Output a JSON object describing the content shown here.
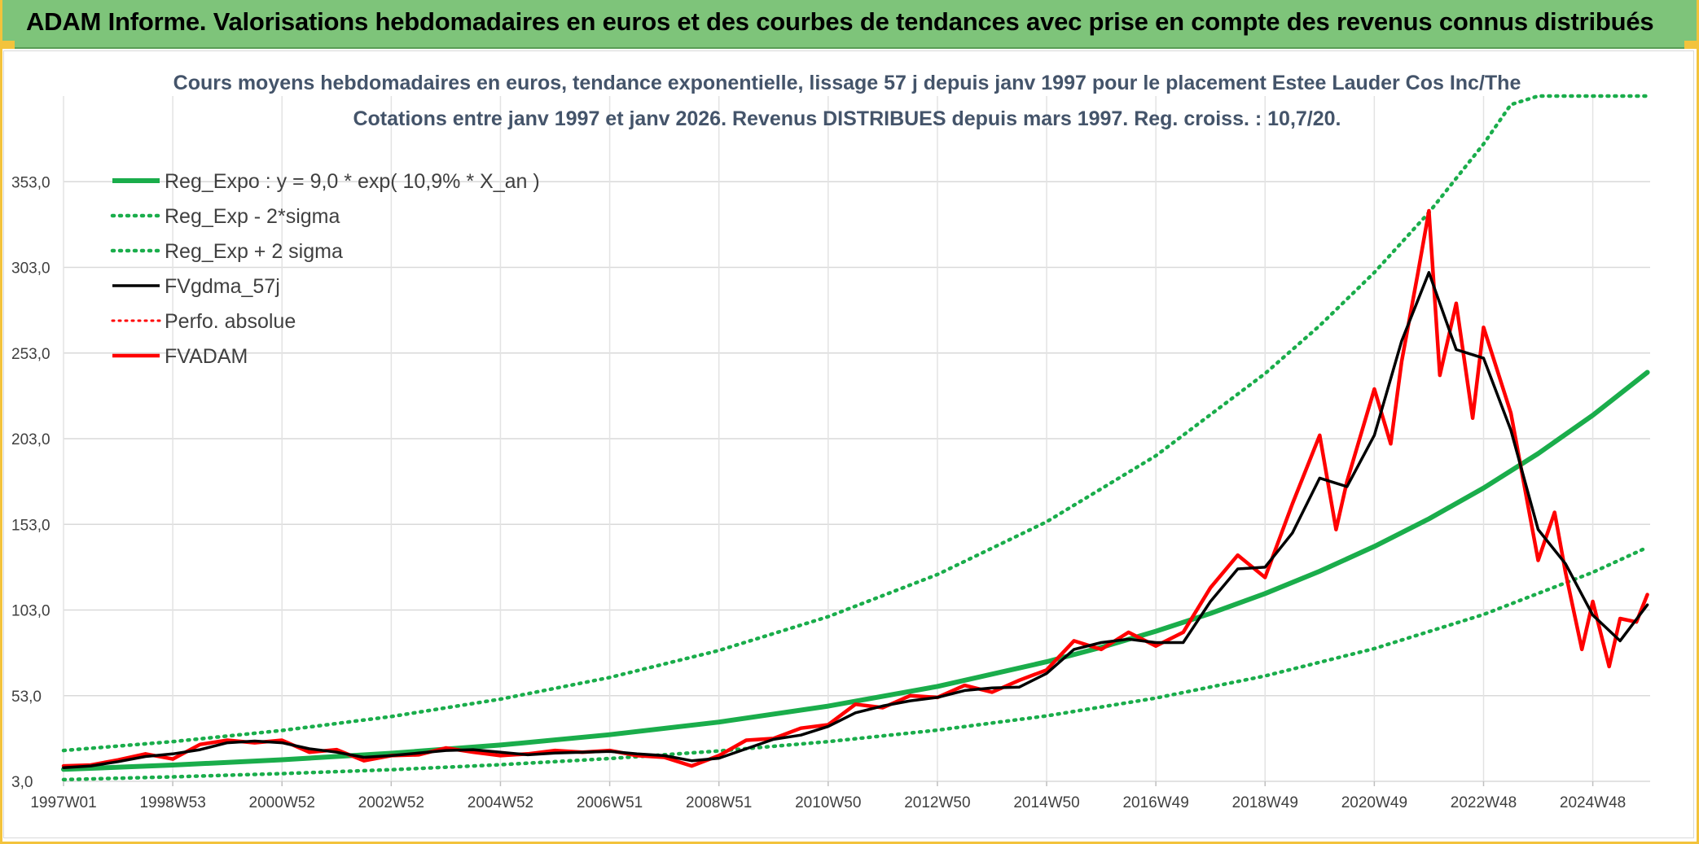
{
  "header": {
    "title": "ADAM Informe. Valorisations hebdomadaires en euros et des courbes de tendances avec prise en compte des revenus connus distribués"
  },
  "colors": {
    "banner": "#7ec47a",
    "trend_green": "#1aad4b",
    "series_red": "#ff0000",
    "series_black": "#000000",
    "title_text": "#44546a"
  },
  "chart_data": {
    "type": "line",
    "title": "Cours moyens hebdomadaires en euros, tendance exponentielle, lissage 57 j depuis janv 1997 pour le placement Estee Lauder Cos Inc/The",
    "subtitle": "Cotations entre janv 1997 et janv 2026. Revenus DISTRIBUES depuis mars 1997. Reg. croiss. : 10,7/20.",
    "xlabel": "",
    "ylabel": "",
    "x_range": [
      1997.0,
      2026.05
    ],
    "ylim": [
      3.0,
      403.0
    ],
    "grid": true,
    "legend_position": "top-left",
    "y_ticks": [
      "3,0",
      "53,0",
      "103,0",
      "153,0",
      "203,0",
      "253,0",
      "303,0",
      "353,0"
    ],
    "y_tick_values": [
      3,
      53,
      103,
      153,
      203,
      253,
      303,
      353
    ],
    "x_ticks": [
      "1997W01",
      "1998W53",
      "2000W52",
      "2002W52",
      "2004W52",
      "2006W51",
      "2008W51",
      "2010W50",
      "2012W50",
      "2014W50",
      "2016W49",
      "2018W49",
      "2020W49",
      "2022W48",
      "2024W48"
    ],
    "x_tick_values": [
      1997.0,
      1999.0,
      2001.0,
      2003.0,
      2005.0,
      2007.0,
      2009.0,
      2011.0,
      2013.0,
      2015.0,
      2017.0,
      2019.0,
      2021.0,
      2023.0,
      2025.0
    ],
    "legend": [
      {
        "key": "reg_expo",
        "label": "Reg_Expo : y = 9,0 * exp( 10,9% *  X_an )",
        "style": "solid-thick-green"
      },
      {
        "key": "reg_minus",
        "label": "Reg_Exp - 2*sigma",
        "style": "dotted-green"
      },
      {
        "key": "reg_plus",
        "label": "Reg_Exp + 2 sigma",
        "style": "dotted-green"
      },
      {
        "key": "fvgdma",
        "label": "FVgdma_57j",
        "style": "solid-black"
      },
      {
        "key": "perfo",
        "label": "Perfo. absolue",
        "style": "dotted-red"
      },
      {
        "key": "fvadam",
        "label": "FVADAM",
        "style": "solid-red"
      }
    ],
    "series": [
      {
        "name": "Reg_Expo : y = 9,0 * exp( 10,9% *  X_an )",
        "x": [
          1997.0,
          1999.0,
          2001.0,
          2003.0,
          2005.0,
          2007.0,
          2009.0,
          2011.0,
          2013.0,
          2015.0,
          2016.0,
          2017.0,
          2018.0,
          2019.0,
          2020.0,
          2021.0,
          2022.0,
          2023.0,
          2024.0,
          2025.0,
          2026.0
        ],
        "values": [
          10.0,
          12.5,
          15.6,
          19.4,
          24.2,
          30.2,
          37.6,
          46.9,
          58.4,
          72.8,
          81.2,
          90.6,
          101.0,
          112.6,
          125.6,
          140.1,
          156.2,
          174.2,
          194.3,
          216.7,
          241.7
        ]
      },
      {
        "name": "Reg_Exp - 2*sigma",
        "x": [
          1997.0,
          1999.0,
          2001.0,
          2003.0,
          2005.0,
          2007.0,
          2009.0,
          2011.0,
          2013.0,
          2015.0,
          2017.0,
          2019.0,
          2021.0,
          2023.0,
          2025.0,
          2026.0
        ],
        "values": [
          4.0,
          5.6,
          7.5,
          9.8,
          12.7,
          16.3,
          20.7,
          26.2,
          32.9,
          41.2,
          51.6,
          64.5,
          80.5,
          100.4,
          125.0,
          139.6
        ]
      },
      {
        "name": "Reg_Exp + 2 sigma",
        "x": [
          1997.0,
          1999.0,
          2001.0,
          2003.0,
          2005.0,
          2007.0,
          2009.0,
          2011.0,
          2013.0,
          2015.0,
          2017.0,
          2019.0,
          2020.0,
          2021.0,
          2022.0,
          2023.0,
          2023.5,
          2024.0,
          2025.0,
          2026.0
        ],
        "values": [
          21.0,
          26.2,
          32.7,
          40.8,
          51.0,
          63.6,
          79.4,
          99.1,
          123.7,
          154.5,
          193.0,
          241.0,
          269.0,
          300.0,
          335.0,
          375.0,
          398.0,
          403.0,
          403.0,
          403.0
        ]
      },
      {
        "name": "FVgdma_57j",
        "x": [
          1997.0,
          1997.5,
          1998.0,
          1998.5,
          1999.0,
          1999.5,
          2000.0,
          2000.5,
          2001.0,
          2001.5,
          2002.0,
          2002.5,
          2003.0,
          2003.5,
          2004.0,
          2004.5,
          2005.0,
          2005.5,
          2006.0,
          2006.5,
          2007.0,
          2007.5,
          2008.0,
          2008.5,
          2009.0,
          2009.5,
          2010.0,
          2010.5,
          2011.0,
          2011.5,
          2012.0,
          2012.5,
          2013.0,
          2013.5,
          2014.0,
          2014.5,
          2015.0,
          2015.5,
          2016.0,
          2016.5,
          2017.0,
          2017.5,
          2018.0,
          2018.5,
          2019.0,
          2019.5,
          2020.0,
          2020.5,
          2021.0,
          2021.5,
          2022.0,
          2022.5,
          2023.0,
          2023.5,
          2024.0,
          2024.5,
          2025.0,
          2025.5,
          2026.0
        ],
        "values": [
          11.0,
          12.0,
          14.5,
          17.5,
          19.0,
          21.5,
          25.5,
          26.5,
          25.5,
          22.0,
          20.0,
          17.0,
          18.0,
          19.5,
          21.0,
          21.5,
          20.0,
          18.5,
          19.5,
          20.0,
          20.5,
          19.0,
          18.0,
          15.0,
          16.5,
          22.0,
          27.5,
          30.0,
          35.0,
          43.0,
          47.0,
          50.0,
          52.0,
          56.0,
          57.5,
          58.0,
          66.0,
          80.0,
          84.0,
          86.0,
          84.0,
          84.0,
          108.0,
          127.0,
          128.0,
          148.0,
          180.0,
          175.0,
          205.0,
          260.0,
          300.0,
          255.0,
          250.0,
          208.0,
          150.0,
          130.0,
          100.0,
          85.0,
          106.0
        ]
      },
      {
        "name": "FVADAM",
        "x": [
          1997.0,
          1997.5,
          1998.0,
          1998.5,
          1999.0,
          1999.5,
          2000.0,
          2000.5,
          2001.0,
          2001.5,
          2002.0,
          2002.5,
          2003.0,
          2003.5,
          2004.0,
          2004.5,
          2005.0,
          2005.5,
          2006.0,
          2006.5,
          2007.0,
          2007.5,
          2008.0,
          2008.5,
          2009.0,
          2009.5,
          2010.0,
          2010.5,
          2011.0,
          2011.5,
          2012.0,
          2012.5,
          2013.0,
          2013.5,
          2014.0,
          2014.5,
          2015.0,
          2015.5,
          2016.0,
          2016.5,
          2017.0,
          2017.5,
          2018.0,
          2018.5,
          2019.0,
          2019.5,
          2020.0,
          2020.3,
          2020.5,
          2021.0,
          2021.3,
          2021.5,
          2021.8,
          2022.0,
          2022.2,
          2022.5,
          2022.8,
          2023.0,
          2023.5,
          2024.0,
          2024.3,
          2024.5,
          2024.8,
          2025.0,
          2025.3,
          2025.5,
          2025.8,
          2026.0
        ],
        "values": [
          12.0,
          12.5,
          15.5,
          19.0,
          16.0,
          24.5,
          27.0,
          25.5,
          27.0,
          20.0,
          21.5,
          15.0,
          18.0,
          18.5,
          22.5,
          20.0,
          18.0,
          19.0,
          21.0,
          20.0,
          21.0,
          18.0,
          17.0,
          12.0,
          18.0,
          27.0,
          28.0,
          34.0,
          36.0,
          48.0,
          46.0,
          53.0,
          52.0,
          59.0,
          55.0,
          62.0,
          68.0,
          85.0,
          80.0,
          90.0,
          82.0,
          90.0,
          116.0,
          135.0,
          122.0,
          165.0,
          205.0,
          150.0,
          178.0,
          232.0,
          200.0,
          248.0,
          300.0,
          336.0,
          240.0,
          282.0,
          215.0,
          268.0,
          218.0,
          132.0,
          160.0,
          125.0,
          80.0,
          108.0,
          70.0,
          98.0,
          96.0,
          112.0
        ]
      }
    ]
  }
}
